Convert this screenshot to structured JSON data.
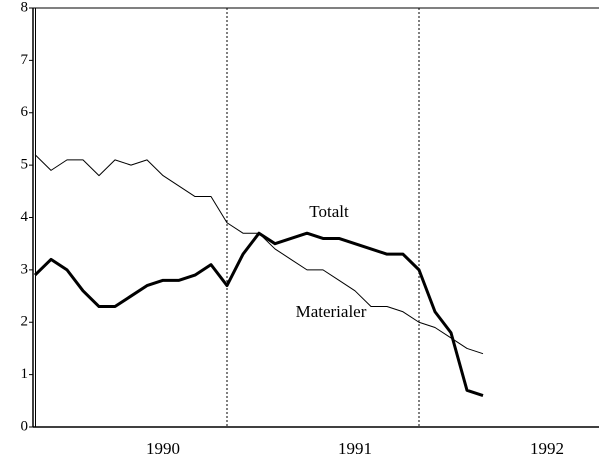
{
  "chart_data": {
    "type": "line",
    "categories": [
      null,
      null,
      null,
      null,
      null,
      null,
      null,
      null,
      "1990",
      null,
      null,
      null,
      null,
      null,
      null,
      null,
      null,
      null,
      null,
      null,
      "1991",
      null,
      null,
      null,
      null,
      null,
      null,
      null,
      null,
      null,
      null,
      null,
      "1992",
      null,
      null,
      null
    ],
    "series": [
      {
        "name": "Totalt",
        "color": "#000000",
        "linewidth": 3,
        "values": [
          2.9,
          3.2,
          3.0,
          2.6,
          2.3,
          2.3,
          2.5,
          2.7,
          2.8,
          2.8,
          2.9,
          3.1,
          2.7,
          3.3,
          3.7,
          3.5,
          3.6,
          3.7,
          3.6,
          3.6,
          3.5,
          3.4,
          3.3,
          3.3,
          3.0,
          2.2,
          1.8,
          0.7,
          0.6,
          null,
          null,
          null,
          null,
          null,
          null,
          null
        ]
      },
      {
        "name": "Materialer",
        "color": "#000000",
        "linewidth": 1,
        "values": [
          5.2,
          4.9,
          5.1,
          5.1,
          4.8,
          5.1,
          5.0,
          5.1,
          4.8,
          4.6,
          4.4,
          4.4,
          3.9,
          3.7,
          3.7,
          3.4,
          3.2,
          3.0,
          3.0,
          2.8,
          2.6,
          2.3,
          2.3,
          2.2,
          2.0,
          1.9,
          1.7,
          1.5,
          1.4,
          null,
          null,
          null,
          null,
          null,
          null,
          null
        ]
      }
    ],
    "ylim": [
      0,
      8
    ],
    "yticks": [
      0,
      1,
      2,
      3,
      4,
      5,
      6,
      7,
      8
    ]
  }
}
